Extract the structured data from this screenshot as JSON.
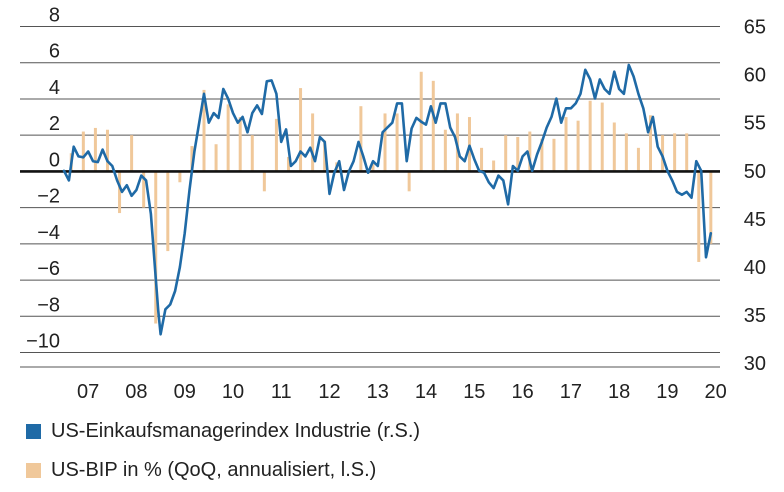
{
  "chart_data": {
    "type": "bar+line",
    "x_tick_labels": [
      "07",
      "08",
      "09",
      "10",
      "11",
      "12",
      "13",
      "14",
      "15",
      "16",
      "17",
      "18",
      "19",
      "20"
    ],
    "left_axis": {
      "ticks": [
        8,
        6,
        4,
        2,
        0,
        -2,
        -4,
        -6,
        -8,
        -10
      ],
      "tick_labels": [
        "8",
        "6",
        "4",
        "2",
        "0",
        "−2",
        "−4",
        "−6",
        "−8",
        "−10"
      ],
      "ylim": [
        -10.8,
        8
      ]
    },
    "right_axis": {
      "ticks": [
        65,
        60,
        55,
        50,
        45,
        40,
        35,
        30
      ],
      "tick_labels": [
        "65",
        "60",
        "55",
        "50",
        "45",
        "40",
        "35",
        "30"
      ],
      "ylim": [
        29.6,
        65
      ]
    },
    "grid": true,
    "legend_position": "bottom-left",
    "colors": {
      "pmi": "#1f6aa6",
      "gdp": "#f0c89a",
      "axis": "#111111",
      "grid": "#555555"
    },
    "series": [
      {
        "name": "US-BIP in % (QoQ, annualisiert, l.S.)",
        "kind": "bar",
        "axis": "left",
        "x": [
          2007.15,
          2007.4,
          2007.65,
          2007.9,
          2008.15,
          2008.4,
          2008.65,
          2008.9,
          2009.15,
          2009.4,
          2009.65,
          2009.9,
          2010.15,
          2010.4,
          2010.65,
          2010.9,
          2011.15,
          2011.4,
          2011.65,
          2011.9,
          2012.15,
          2012.4,
          2012.65,
          2012.9,
          2013.15,
          2013.4,
          2013.65,
          2013.9,
          2014.15,
          2014.4,
          2014.65,
          2014.9,
          2015.15,
          2015.4,
          2015.65,
          2015.9,
          2016.15,
          2016.4,
          2016.65,
          2016.9,
          2017.15,
          2017.4,
          2017.65,
          2017.9,
          2018.15,
          2018.4,
          2018.65,
          2018.9,
          2019.15,
          2019.4,
          2019.65,
          2019.9,
          2020.15,
          2020.4
        ],
        "values": [
          1.0,
          2.2,
          2.4,
          2.3,
          -2.3,
          2.0,
          -2.0,
          -8.4,
          -4.4,
          -0.6,
          1.4,
          4.5,
          1.5,
          3.7,
          3.0,
          2.0,
          -1.1,
          2.9,
          0.8,
          4.6,
          3.2,
          1.7,
          0.5,
          0.1,
          3.6,
          0.5,
          3.2,
          3.2,
          -1.1,
          5.5,
          5.0,
          2.3,
          3.2,
          3.0,
          1.3,
          0.6,
          2.0,
          1.9,
          2.2,
          1.8,
          1.8,
          3.0,
          2.8,
          3.9,
          3.8,
          2.7,
          2.1,
          1.3,
          3.1,
          2.0,
          2.1,
          2.1,
          -5.0,
          -4.0
        ]
      },
      {
        "name": "US-Einkaufsmanagerindex Industrie (r.S.)",
        "kind": "line",
        "axis": "right",
        "x": [
          2007.0,
          2007.1,
          2007.2,
          2007.3,
          2007.4,
          2007.5,
          2007.6,
          2007.7,
          2007.8,
          2007.9,
          2008.0,
          2008.1,
          2008.2,
          2008.3,
          2008.4,
          2008.5,
          2008.6,
          2008.7,
          2008.8,
          2008.9,
          2008.95,
          2009.0,
          2009.1,
          2009.2,
          2009.3,
          2009.4,
          2009.5,
          2009.6,
          2009.7,
          2009.8,
          2009.9,
          2010.0,
          2010.1,
          2010.2,
          2010.3,
          2010.4,
          2010.5,
          2010.6,
          2010.7,
          2010.8,
          2010.9,
          2011.0,
          2011.1,
          2011.2,
          2011.3,
          2011.4,
          2011.5,
          2011.6,
          2011.7,
          2011.8,
          2011.9,
          2012.0,
          2012.1,
          2012.2,
          2012.3,
          2012.4,
          2012.5,
          2012.6,
          2012.7,
          2012.8,
          2012.9,
          2013.0,
          2013.1,
          2013.2,
          2013.3,
          2013.4,
          2013.5,
          2013.6,
          2013.7,
          2013.8,
          2013.9,
          2014.0,
          2014.1,
          2014.2,
          2014.3,
          2014.4,
          2014.5,
          2014.6,
          2014.7,
          2014.8,
          2014.9,
          2015.0,
          2015.1,
          2015.2,
          2015.3,
          2015.4,
          2015.5,
          2015.6,
          2015.7,
          2015.8,
          2015.9,
          2016.0,
          2016.1,
          2016.2,
          2016.3,
          2016.4,
          2016.5,
          2016.6,
          2016.7,
          2016.8,
          2016.9,
          2017.0,
          2017.1,
          2017.2,
          2017.3,
          2017.4,
          2017.5,
          2017.6,
          2017.7,
          2017.8,
          2017.9,
          2018.0,
          2018.1,
          2018.2,
          2018.3,
          2018.4,
          2018.5,
          2018.6,
          2018.7,
          2018.8,
          2018.9,
          2019.0,
          2019.1,
          2019.2,
          2019.3,
          2019.4,
          2019.5,
          2019.6,
          2019.7,
          2019.8,
          2019.9,
          2020.0,
          2020.1,
          2020.2,
          2020.3,
          2020.4
        ],
        "values": [
          50.0,
          49.0,
          52.5,
          51.5,
          51.4,
          52.0,
          51.0,
          50.9,
          52.2,
          51.0,
          50.5,
          49.0,
          47.8,
          48.5,
          47.4,
          48.0,
          49.5,
          49.0,
          45.5,
          38.9,
          35.5,
          33.0,
          35.6,
          36.1,
          37.5,
          40.0,
          43.5,
          48.0,
          52.0,
          55.0,
          58.0,
          55.0,
          56.0,
          55.5,
          58.5,
          57.5,
          56.0,
          55.0,
          55.6,
          54.0,
          56.0,
          56.8,
          55.9,
          59.3,
          59.4,
          58.0,
          53.0,
          54.3,
          50.5,
          51.0,
          52.0,
          51.5,
          52.4,
          51.0,
          53.5,
          53.0,
          47.6,
          49.8,
          51.0,
          48.0,
          49.9,
          51.0,
          53.0,
          51.5,
          49.8,
          51.0,
          50.5,
          54.0,
          54.5,
          55.0,
          57.0,
          57.0,
          51.0,
          54.4,
          55.5,
          55.1,
          54.8,
          56.7,
          55.0,
          57.0,
          57.0,
          54.5,
          53.5,
          51.5,
          51.0,
          52.6,
          51.2,
          50.0,
          49.8,
          48.8,
          48.2,
          49.5,
          49.0,
          46.5,
          50.5,
          50.0,
          51.5,
          52.0,
          50.0,
          51.7,
          53.0,
          54.5,
          55.6,
          57.5,
          55.0,
          56.5,
          56.5,
          57.0,
          58.0,
          60.5,
          59.5,
          57.5,
          59.5,
          58.5,
          58.0,
          60.3,
          58.5,
          58.0,
          61.0,
          59.8,
          58.0,
          56.5,
          54.0,
          55.6,
          52.5,
          51.5,
          50.0,
          49.0,
          47.8,
          47.5,
          47.8,
          47.2,
          51.0,
          50.0,
          41.0,
          43.5
        ]
      }
    ]
  },
  "legend": {
    "pmi_label": "US-Einkaufsmanagerindex Industrie (r.S.)",
    "gdp_label": "US-BIP in % (QoQ, annualisiert, l.S.)"
  }
}
